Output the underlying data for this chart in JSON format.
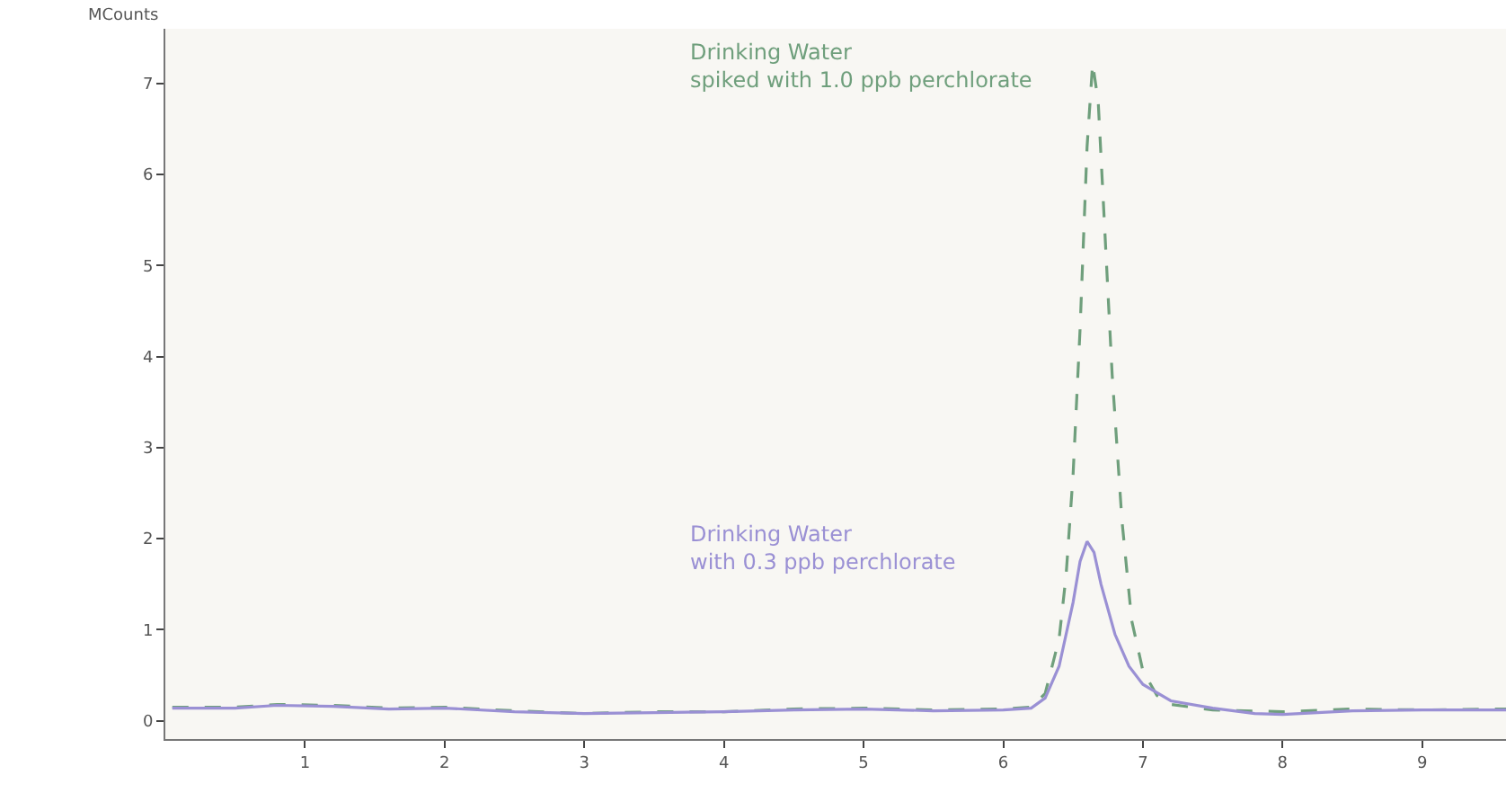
{
  "chart_data": {
    "type": "line",
    "ylabel": "MCounts",
    "xlim": [
      0,
      9.6
    ],
    "ylim": [
      -0.2,
      7.6
    ],
    "xticks": [
      1,
      2,
      3,
      4,
      5,
      6,
      7,
      8,
      9
    ],
    "yticks": [
      0,
      1,
      2,
      3,
      4,
      5,
      6,
      7
    ],
    "grid": false,
    "legend": false,
    "series": [
      {
        "name": "Drinking Water\nspiked with 1.0 ppb perchlorate",
        "color": "#6f9f7c",
        "line_style": "dashed",
        "x": [
          0.05,
          0.5,
          0.8,
          1.2,
          1.6,
          2.0,
          2.5,
          3.0,
          3.5,
          4.0,
          4.5,
          5.0,
          5.5,
          6.0,
          6.2,
          6.3,
          6.4,
          6.45,
          6.5,
          6.55,
          6.6,
          6.64,
          6.68,
          6.72,
          6.78,
          6.85,
          6.92,
          7.0,
          7.1,
          7.2,
          7.5,
          8.0,
          8.5,
          9.0,
          9.6
        ],
        "values": [
          0.15,
          0.15,
          0.18,
          0.17,
          0.14,
          0.15,
          0.11,
          0.08,
          0.1,
          0.1,
          0.13,
          0.14,
          0.12,
          0.13,
          0.15,
          0.3,
          0.9,
          1.6,
          2.7,
          4.3,
          6.3,
          7.22,
          6.8,
          5.6,
          3.8,
          2.2,
          1.1,
          0.55,
          0.28,
          0.18,
          0.12,
          0.1,
          0.13,
          0.12,
          0.13
        ]
      },
      {
        "name": "Drinking Water\nwith 0.3 ppb perchlorate",
        "color": "#9a90d4",
        "line_style": "solid",
        "x": [
          0.05,
          0.5,
          0.8,
          1.2,
          1.6,
          2.0,
          2.5,
          3.0,
          3.5,
          4.0,
          4.5,
          5.0,
          5.5,
          6.0,
          6.2,
          6.3,
          6.4,
          6.5,
          6.55,
          6.6,
          6.65,
          6.7,
          6.8,
          6.9,
          7.0,
          7.2,
          7.5,
          7.8,
          8.0,
          8.5,
          9.0,
          9.6
        ],
        "values": [
          0.14,
          0.14,
          0.17,
          0.16,
          0.13,
          0.14,
          0.1,
          0.08,
          0.09,
          0.1,
          0.12,
          0.13,
          0.11,
          0.12,
          0.14,
          0.25,
          0.6,
          1.3,
          1.75,
          1.97,
          1.85,
          1.5,
          0.95,
          0.6,
          0.4,
          0.22,
          0.14,
          0.08,
          0.07,
          0.11,
          0.12,
          0.12
        ]
      }
    ]
  }
}
